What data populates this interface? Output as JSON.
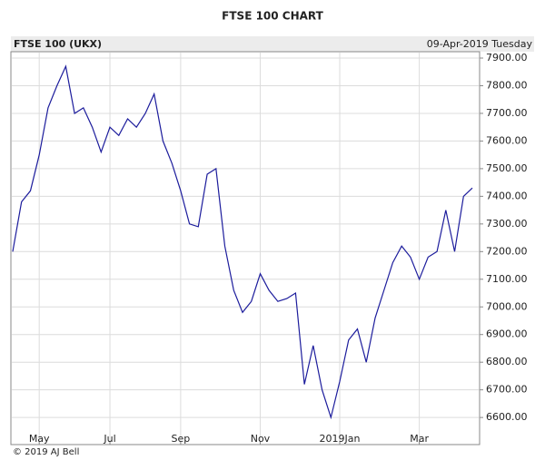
{
  "chart_data": {
    "type": "line",
    "title": "FTSE 100 CHART",
    "subtitle": "FTSE 100 (UKX)",
    "date": "09-Apr-2019 Tuesday",
    "footer": "© 2019 AJ Bell",
    "categories": [
      null,
      null,
      null,
      "May",
      null,
      null,
      null,
      null,
      null,
      null,
      null,
      "Jul",
      null,
      null,
      null,
      null,
      null,
      null,
      null,
      "Sep",
      null,
      null,
      null,
      null,
      null,
      null,
      null,
      null,
      "Nov",
      null,
      null,
      null,
      null,
      null,
      null,
      null,
      null,
      "2019Jan",
      null,
      null,
      null,
      null,
      null,
      null,
      null,
      null,
      "Mar",
      null,
      null,
      null,
      null,
      null,
      null
    ],
    "series": [
      {
        "name": "FTSE 100 (UKX)",
        "color": "#1c1c9c",
        "values": [
          7200,
          7380,
          7420,
          7550,
          7720,
          7800,
          7870,
          7700,
          7720,
          7650,
          7560,
          7650,
          7620,
          7680,
          7650,
          7700,
          7770,
          7600,
          7520,
          7420,
          7300,
          7290,
          7480,
          7500,
          7220,
          7060,
          6980,
          7020,
          7120,
          7060,
          7020,
          7030,
          7050,
          6720,
          6860,
          6700,
          6600,
          6730,
          6880,
          6920,
          6800,
          6960,
          7060,
          7160,
          7220,
          7180,
          7100,
          7180,
          7200,
          7350,
          7200,
          7400,
          7430
        ]
      }
    ],
    "ylim": [
      6502,
      7923
    ],
    "yticks": [
      {
        "value": 6600,
        "label": "6600.00"
      },
      {
        "value": 6700,
        "label": "6700.00"
      },
      {
        "value": 6800,
        "label": "6800.00"
      },
      {
        "value": 6900,
        "label": "6900.00"
      },
      {
        "value": 7000,
        "label": "7000.00"
      },
      {
        "value": 7100,
        "label": "7100.00"
      },
      {
        "value": 7200,
        "label": "7200.00"
      },
      {
        "value": 7300,
        "label": "7300.00"
      },
      {
        "value": 7400,
        "label": "7400.00"
      },
      {
        "value": 7500,
        "label": "7500.00"
      },
      {
        "value": 7600,
        "label": "7600.00"
      },
      {
        "value": 7700,
        "label": "7700.00"
      },
      {
        "value": 7800,
        "label": "7800.00"
      },
      {
        "value": 7900,
        "label": "7900.00"
      }
    ],
    "grid": true
  }
}
